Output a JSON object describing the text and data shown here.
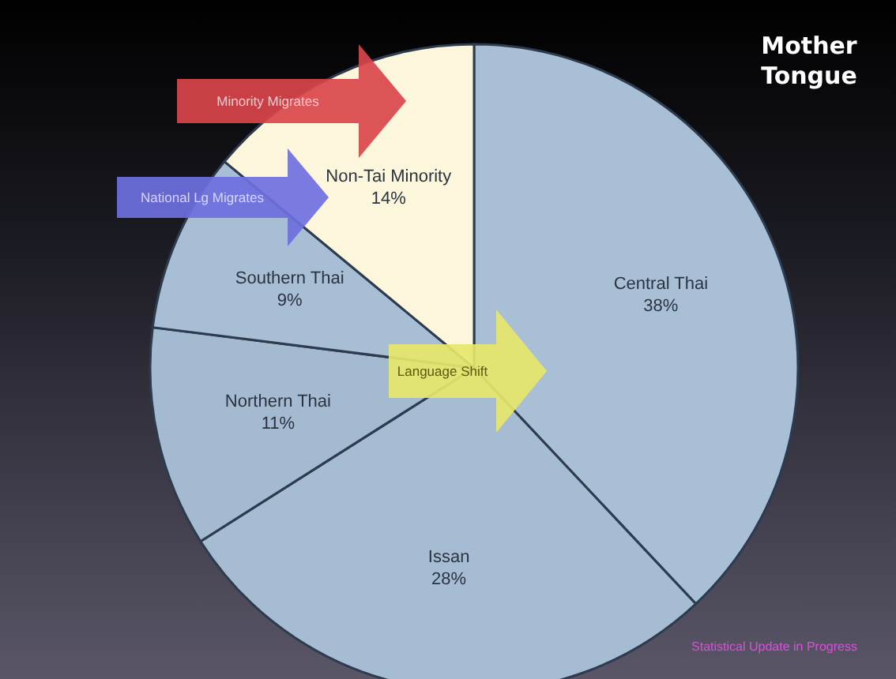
{
  "chart_data": {
    "type": "pie",
    "title": "Mother Tongue",
    "categories": [
      "Central Thai",
      "Issan",
      "Northern Thai",
      "Southern Thai",
      "Non-Tai Minority"
    ],
    "values": [
      38,
      28,
      11,
      9,
      14
    ],
    "value_labels": [
      "38%",
      "28%",
      "11%",
      "9%",
      "14%"
    ],
    "colors": [
      "#a9bfd6",
      "#a6bcd3",
      "#a4bad1",
      "#a8bed5",
      "#fbf6dc"
    ],
    "annotations": [
      "Minority Migrates",
      "National Lg Migrates",
      "Language Shift",
      "Statistical Update in Progress"
    ]
  }
}
